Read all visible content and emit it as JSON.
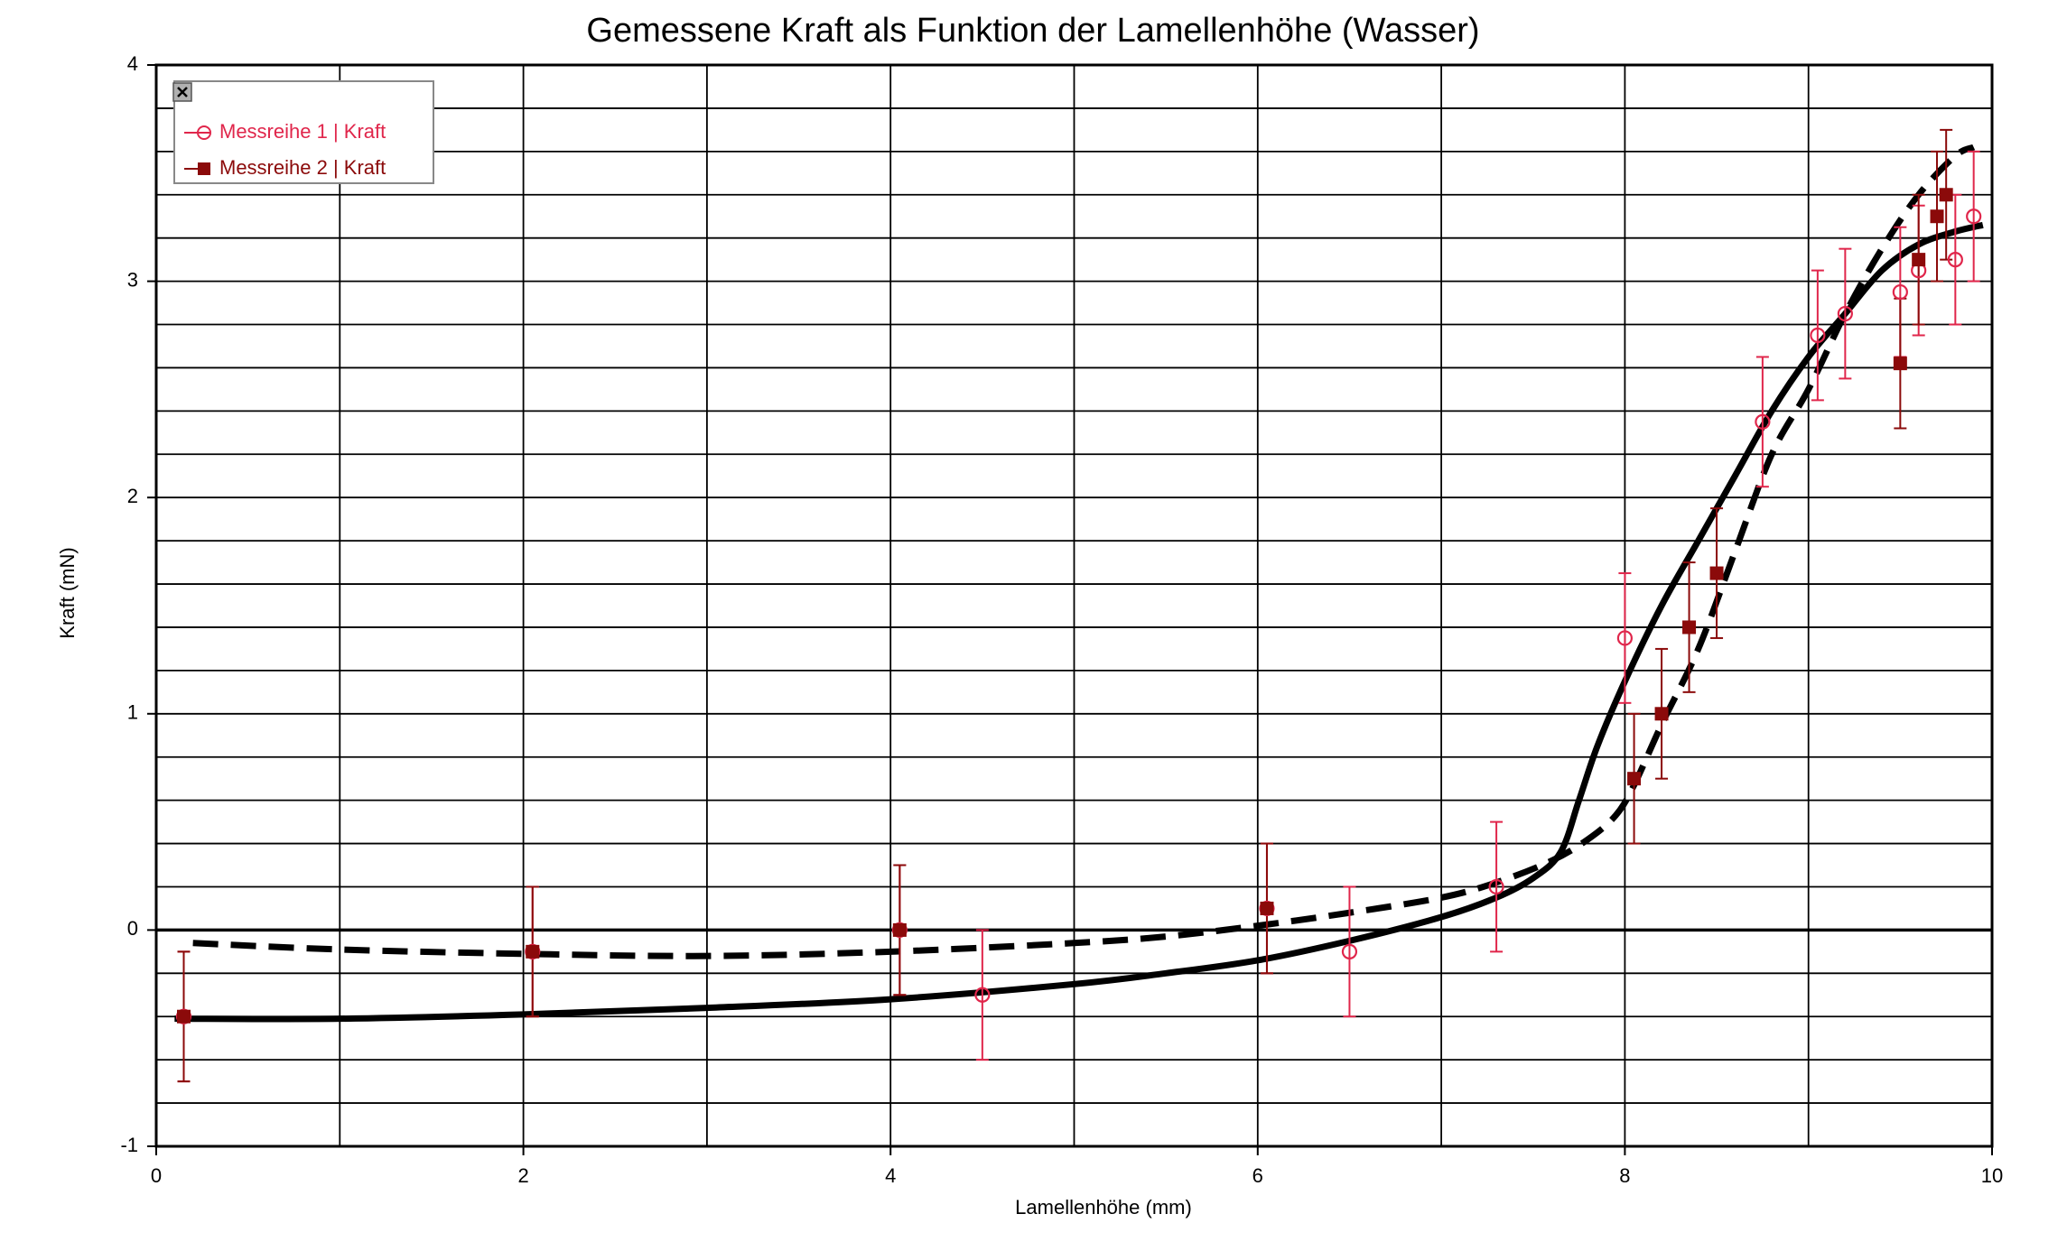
{
  "chart_data": {
    "type": "scatter",
    "title": "Gemessene Kraft als Funktion der Lamellenhöhe (Wasser)",
    "xlabel": "Lamellenhöhe (mm)",
    "ylabel": "Kraft (mN)",
    "xlim": [
      0,
      10
    ],
    "ylim": [
      -1,
      4
    ],
    "x_ticks": [
      "0",
      "2",
      "4",
      "6",
      "8",
      "10"
    ],
    "y_ticks": [
      "-1",
      "0",
      "1",
      "2",
      "3",
      "4"
    ],
    "grid": true,
    "legend_position": "top-left",
    "series": [
      {
        "name": "Messreihe 1 | Kraft",
        "marker": "open-circle",
        "color": "#E0264B",
        "error": 0.3,
        "points": [
          {
            "x": 0.15,
            "y": -0.4
          },
          {
            "x": 2.05,
            "y": -0.1
          },
          {
            "x": 4.05,
            "y": 0.0
          },
          {
            "x": 4.5,
            "y": -0.3
          },
          {
            "x": 6.05,
            "y": 0.1
          },
          {
            "x": 6.5,
            "y": -0.1
          },
          {
            "x": 7.3,
            "y": 0.2
          },
          {
            "x": 8.0,
            "y": 1.35
          },
          {
            "x": 8.75,
            "y": 2.35
          },
          {
            "x": 9.05,
            "y": 2.75
          },
          {
            "x": 9.2,
            "y": 2.85
          },
          {
            "x": 9.5,
            "y": 2.95
          },
          {
            "x": 9.6,
            "y": 3.05
          },
          {
            "x": 9.8,
            "y": 3.1
          },
          {
            "x": 9.9,
            "y": 3.3
          }
        ]
      },
      {
        "name": "Messreihe 2 | Kraft",
        "marker": "filled-square",
        "color": "#8B0A0A",
        "error": 0.3,
        "points": [
          {
            "x": 0.15,
            "y": -0.4
          },
          {
            "x": 2.05,
            "y": -0.1
          },
          {
            "x": 4.05,
            "y": 0.0
          },
          {
            "x": 6.05,
            "y": 0.1
          },
          {
            "x": 8.05,
            "y": 0.7
          },
          {
            "x": 8.2,
            "y": 1.0
          },
          {
            "x": 8.35,
            "y": 1.4
          },
          {
            "x": 8.5,
            "y": 1.65
          },
          {
            "x": 9.5,
            "y": 2.62
          },
          {
            "x": 9.6,
            "y": 3.1
          },
          {
            "x": 9.7,
            "y": 3.3
          },
          {
            "x": 9.75,
            "y": 3.4
          }
        ]
      }
    ],
    "fit_curves": [
      {
        "style": "solid",
        "color": "#000000",
        "points": [
          [
            0.1,
            -0.41
          ],
          [
            1,
            -0.41
          ],
          [
            2,
            -0.39
          ],
          [
            3,
            -0.36
          ],
          [
            4,
            -0.32
          ],
          [
            5,
            -0.25
          ],
          [
            5.5,
            -0.2
          ],
          [
            6,
            -0.14
          ],
          [
            6.5,
            -0.05
          ],
          [
            7,
            0.06
          ],
          [
            7.3,
            0.15
          ],
          [
            7.5,
            0.24
          ],
          [
            7.65,
            0.36
          ],
          [
            7.75,
            0.6
          ],
          [
            7.85,
            0.85
          ],
          [
            8.0,
            1.15
          ],
          [
            8.2,
            1.5
          ],
          [
            8.4,
            1.8
          ],
          [
            8.6,
            2.1
          ],
          [
            8.8,
            2.4
          ],
          [
            9.0,
            2.65
          ],
          [
            9.2,
            2.85
          ],
          [
            9.4,
            3.05
          ],
          [
            9.6,
            3.17
          ],
          [
            9.8,
            3.23
          ],
          [
            9.95,
            3.26
          ]
        ]
      },
      {
        "style": "dashed",
        "color": "#000000",
        "points": [
          [
            0.2,
            -0.06
          ],
          [
            1,
            -0.09
          ],
          [
            2,
            -0.11
          ],
          [
            3,
            -0.12
          ],
          [
            4,
            -0.1
          ],
          [
            5,
            -0.06
          ],
          [
            5.5,
            -0.03
          ],
          [
            6,
            0.02
          ],
          [
            6.5,
            0.08
          ],
          [
            7,
            0.15
          ],
          [
            7.3,
            0.22
          ],
          [
            7.6,
            0.32
          ],
          [
            7.8,
            0.42
          ],
          [
            7.95,
            0.53
          ],
          [
            8.05,
            0.67
          ],
          [
            8.2,
            0.95
          ],
          [
            8.4,
            1.3
          ],
          [
            8.6,
            1.75
          ],
          [
            8.8,
            2.2
          ],
          [
            9.0,
            2.5
          ],
          [
            9.2,
            2.85
          ],
          [
            9.4,
            3.15
          ],
          [
            9.6,
            3.4
          ],
          [
            9.8,
            3.58
          ],
          [
            9.9,
            3.62
          ]
        ]
      }
    ]
  }
}
